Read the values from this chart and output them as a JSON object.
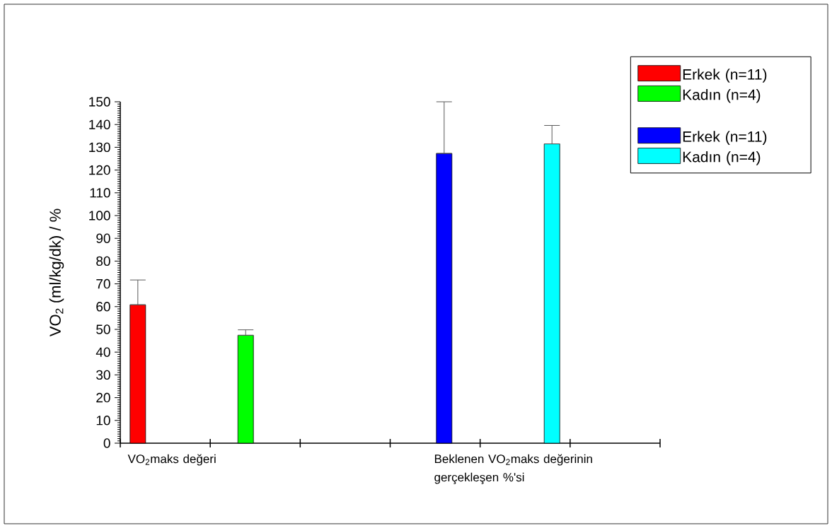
{
  "chart_data": {
    "type": "bar",
    "ylabel": "VO$_{2}$ (ml/kg/dk)   /   %",
    "categories": [
      "VO$_{2}$maks değeri",
      "Beklenen VO$_{2}$maks değerinin gerçekleşen %'si"
    ],
    "series": [
      {
        "name": "Erkek (n=11)",
        "color": "#ff0000",
        "values": [
          60.8,
          null
        ],
        "errors": [
          [
            60.8,
            71.7
          ],
          null
        ]
      },
      {
        "name": "Kadın (n=4)",
        "color": "#00ff00",
        "values": [
          47.4,
          null
        ],
        "errors": [
          [
            47.4,
            49.8
          ],
          null
        ]
      },
      {
        "name": "Erkek (n=11)",
        "color": "#0000ff",
        "values": [
          null,
          127.3
        ],
        "errors": [
          null,
          [
            127.3,
            150
          ]
        ]
      },
      {
        "name": "Kadın (n=4)",
        "color": "#00ffff",
        "values": [
          null,
          131.5
        ],
        "errors": [
          null,
          [
            131.5,
            139.6
          ]
        ]
      }
    ],
    "ylim": [
      0,
      150
    ],
    "yticks": [
      0,
      10,
      20,
      30,
      40,
      50,
      60,
      70,
      80,
      90,
      100,
      110,
      120,
      130,
      140,
      150
    ],
    "legend": "top right",
    "grid": false
  }
}
